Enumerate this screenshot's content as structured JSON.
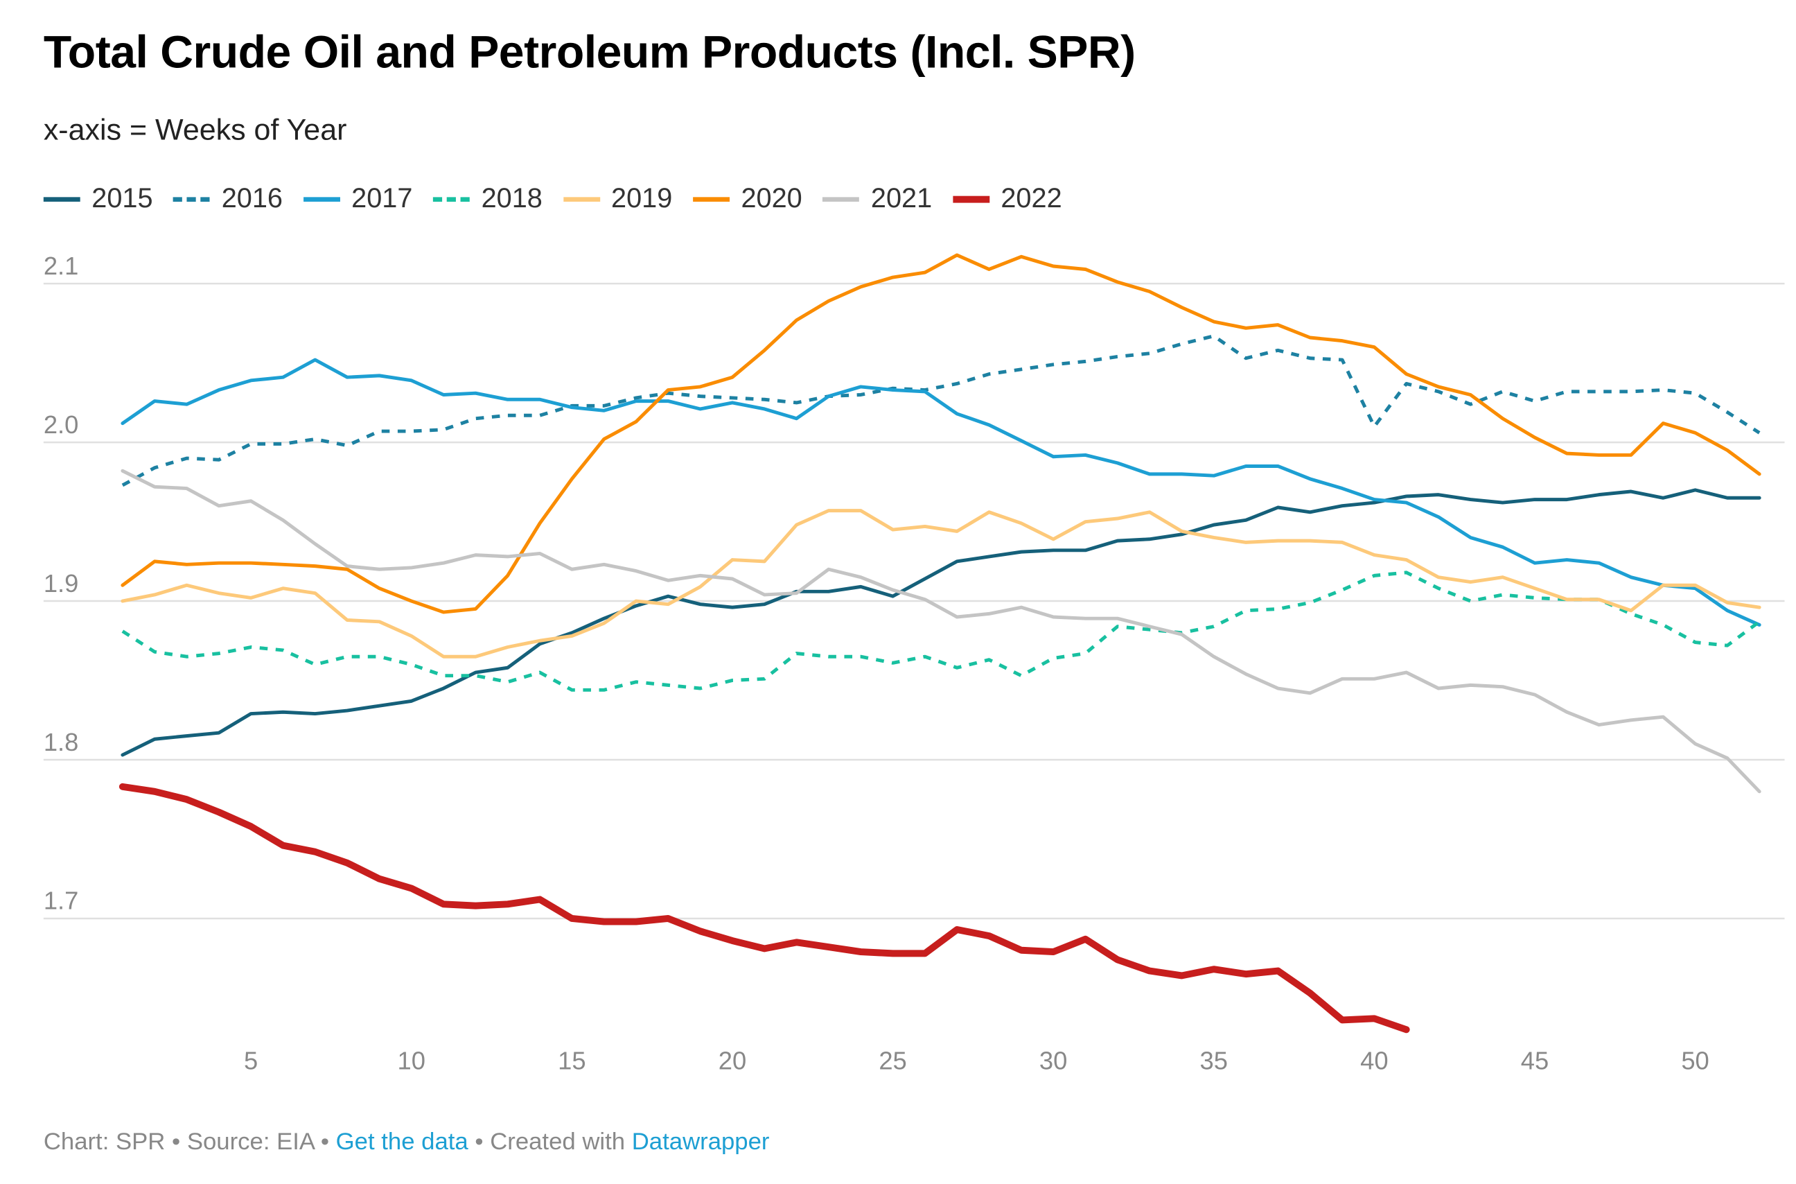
{
  "chart_data": {
    "type": "line",
    "title": "Total Crude Oil and Petroleum Products (Incl. SPR)",
    "subtitle": "x-axis = Weeks of Year",
    "xlabel": "",
    "ylabel": "",
    "xlim": [
      1,
      52
    ],
    "ylim": [
      1.62,
      2.12
    ],
    "x_ticks": [
      "5",
      "10",
      "15",
      "20",
      "25",
      "30",
      "35",
      "40",
      "45",
      "50"
    ],
    "x_tick_values": [
      5,
      10,
      15,
      20,
      25,
      30,
      35,
      40,
      45,
      50
    ],
    "y_ticks": [
      "1.7",
      "1.8",
      "1.9",
      "2.0",
      "2.1"
    ],
    "y_tick_values": [
      1.7,
      1.8,
      1.9,
      2.0,
      2.1
    ],
    "grid": true,
    "legend_position": "top-left",
    "series": [
      {
        "name": "2015",
        "color": "#15607a",
        "dash": false,
        "width": 3,
        "values": [
          1.803,
          1.813,
          1.815,
          1.817,
          1.829,
          1.83,
          1.829,
          1.831,
          1.834,
          1.837,
          1.845,
          1.855,
          1.858,
          1.873,
          1.88,
          1.889,
          1.897,
          1.903,
          1.898,
          1.896,
          1.898,
          1.906,
          1.906,
          1.909,
          1.903,
          1.914,
          1.925,
          1.928,
          1.931,
          1.932,
          1.932,
          1.938,
          1.939,
          1.942,
          1.948,
          1.951,
          1.959,
          1.956,
          1.96,
          1.962,
          1.966,
          1.967,
          1.964,
          1.962,
          1.964,
          1.964,
          1.967,
          1.969,
          1.965,
          1.97,
          1.965,
          1.965
        ]
      },
      {
        "name": "2016",
        "color": "#1d81a2",
        "dash": true,
        "width": 3,
        "values": [
          1.973,
          1.984,
          1.99,
          1.989,
          1.999,
          1.999,
          2.002,
          1.998,
          2.007,
          2.007,
          2.008,
          2.015,
          2.017,
          2.017,
          2.023,
          2.023,
          2.028,
          2.031,
          2.029,
          2.028,
          2.027,
          2.025,
          2.029,
          2.03,
          2.034,
          2.033,
          2.037,
          2.043,
          2.046,
          2.049,
          2.051,
          2.054,
          2.056,
          2.062,
          2.067,
          2.053,
          2.058,
          2.053,
          2.052,
          2.01,
          2.037,
          2.032,
          2.024,
          2.032,
          2.026,
          2.032,
          2.032,
          2.032,
          2.033,
          2.031,
          2.019,
          2.006
        ]
      },
      {
        "name": "2017",
        "color": "#1d9fd3",
        "dash": false,
        "width": 3,
        "values": [
          2.012,
          2.026,
          2.024,
          2.033,
          2.039,
          2.041,
          2.052,
          2.041,
          2.042,
          2.039,
          2.03,
          2.031,
          2.027,
          2.027,
          2.022,
          2.02,
          2.026,
          2.026,
          2.021,
          2.025,
          2.021,
          2.015,
          2.029,
          2.035,
          2.033,
          2.032,
          2.018,
          2.011,
          2.001,
          1.991,
          1.992,
          1.987,
          1.98,
          1.98,
          1.979,
          1.985,
          1.985,
          1.977,
          1.971,
          1.964,
          1.962,
          1.953,
          1.94,
          1.934,
          1.924,
          1.926,
          1.924,
          1.915,
          1.91,
          1.908,
          1.894,
          1.885
        ]
      },
      {
        "name": "2018",
        "color": "#18c0a0",
        "dash": true,
        "width": 3,
        "values": [
          1.881,
          1.868,
          1.865,
          1.867,
          1.871,
          1.869,
          1.86,
          1.865,
          1.865,
          1.86,
          1.853,
          1.853,
          1.849,
          1.855,
          1.844,
          1.844,
          1.849,
          1.847,
          1.845,
          1.85,
          1.851,
          1.867,
          1.865,
          1.865,
          1.861,
          1.865,
          1.858,
          1.863,
          1.853,
          1.864,
          1.867,
          1.884,
          1.882,
          1.88,
          1.884,
          1.894,
          1.895,
          1.899,
          1.907,
          1.916,
          1.918,
          1.908,
          1.9,
          1.904,
          1.902,
          1.901,
          1.901,
          1.892,
          1.885,
          1.874,
          1.872,
          1.887
        ]
      },
      {
        "name": "2019",
        "color": "#fdc97a",
        "dash": false,
        "width": 3,
        "values": [
          1.9,
          1.904,
          1.91,
          1.905,
          1.902,
          1.908,
          1.905,
          1.888,
          1.887,
          1.878,
          1.865,
          1.865,
          1.871,
          1.875,
          1.878,
          1.886,
          1.9,
          1.898,
          1.909,
          1.926,
          1.925,
          1.948,
          1.957,
          1.957,
          1.945,
          1.947,
          1.944,
          1.956,
          1.949,
          1.939,
          1.95,
          1.952,
          1.956,
          1.944,
          1.94,
          1.937,
          1.938,
          1.938,
          1.937,
          1.929,
          1.926,
          1.915,
          1.912,
          1.915,
          1.908,
          1.901,
          1.901,
          1.894,
          1.91,
          1.91,
          1.899,
          1.896
        ]
      },
      {
        "name": "2020",
        "color": "#fa8c00",
        "dash": false,
        "width": 3,
        "values": [
          1.91,
          1.925,
          1.923,
          1.924,
          1.924,
          1.923,
          1.922,
          1.92,
          1.908,
          1.9,
          1.893,
          1.895,
          1.916,
          1.949,
          1.977,
          2.002,
          2.013,
          2.033,
          2.035,
          2.041,
          2.058,
          2.077,
          2.089,
          2.098,
          2.104,
          2.107,
          2.118,
          2.109,
          2.117,
          2.111,
          2.109,
          2.101,
          2.095,
          2.085,
          2.076,
          2.072,
          2.074,
          2.066,
          2.064,
          2.06,
          2.043,
          2.035,
          2.03,
          2.015,
          2.003,
          1.993,
          1.992,
          1.992,
          2.012,
          2.006,
          1.995,
          1.98
        ]
      },
      {
        "name": "2021",
        "color": "#c4c4c4",
        "dash": false,
        "width": 3,
        "values": [
          1.982,
          1.972,
          1.971,
          1.96,
          1.963,
          1.951,
          1.936,
          1.922,
          1.92,
          1.921,
          1.924,
          1.929,
          1.928,
          1.93,
          1.92,
          1.923,
          1.919,
          1.913,
          1.916,
          1.914,
          1.904,
          1.905,
          1.92,
          1.915,
          1.907,
          1.901,
          1.89,
          1.892,
          1.896,
          1.89,
          1.889,
          1.889,
          1.884,
          1.879,
          1.865,
          1.854,
          1.845,
          1.842,
          1.851,
          1.851,
          1.855,
          1.845,
          1.847,
          1.846,
          1.841,
          1.83,
          1.822,
          1.825,
          1.827,
          1.81,
          1.801,
          1.78
        ]
      },
      {
        "name": "2022",
        "color": "#c71e1d",
        "dash": false,
        "width": 6,
        "values": [
          1.783,
          1.78,
          1.775,
          1.767,
          1.758,
          1.746,
          1.742,
          1.735,
          1.725,
          1.719,
          1.709,
          1.708,
          1.709,
          1.712,
          1.7,
          1.698,
          1.698,
          1.7,
          1.692,
          1.686,
          1.681,
          1.685,
          1.682,
          1.679,
          1.678,
          1.678,
          1.693,
          1.689,
          1.68,
          1.679,
          1.687,
          1.674,
          1.667,
          1.664,
          1.668,
          1.665,
          1.667,
          1.653,
          1.636,
          1.637,
          1.63
        ]
      }
    ]
  },
  "footer": {
    "chart_label": "Chart: SPR",
    "sep1": " • ",
    "source": "Source: EIA",
    "sep2": " • ",
    "get_data": "Get the data",
    "sep3": " • ",
    "created": "Created with ",
    "datawrapper": "Datawrapper"
  }
}
